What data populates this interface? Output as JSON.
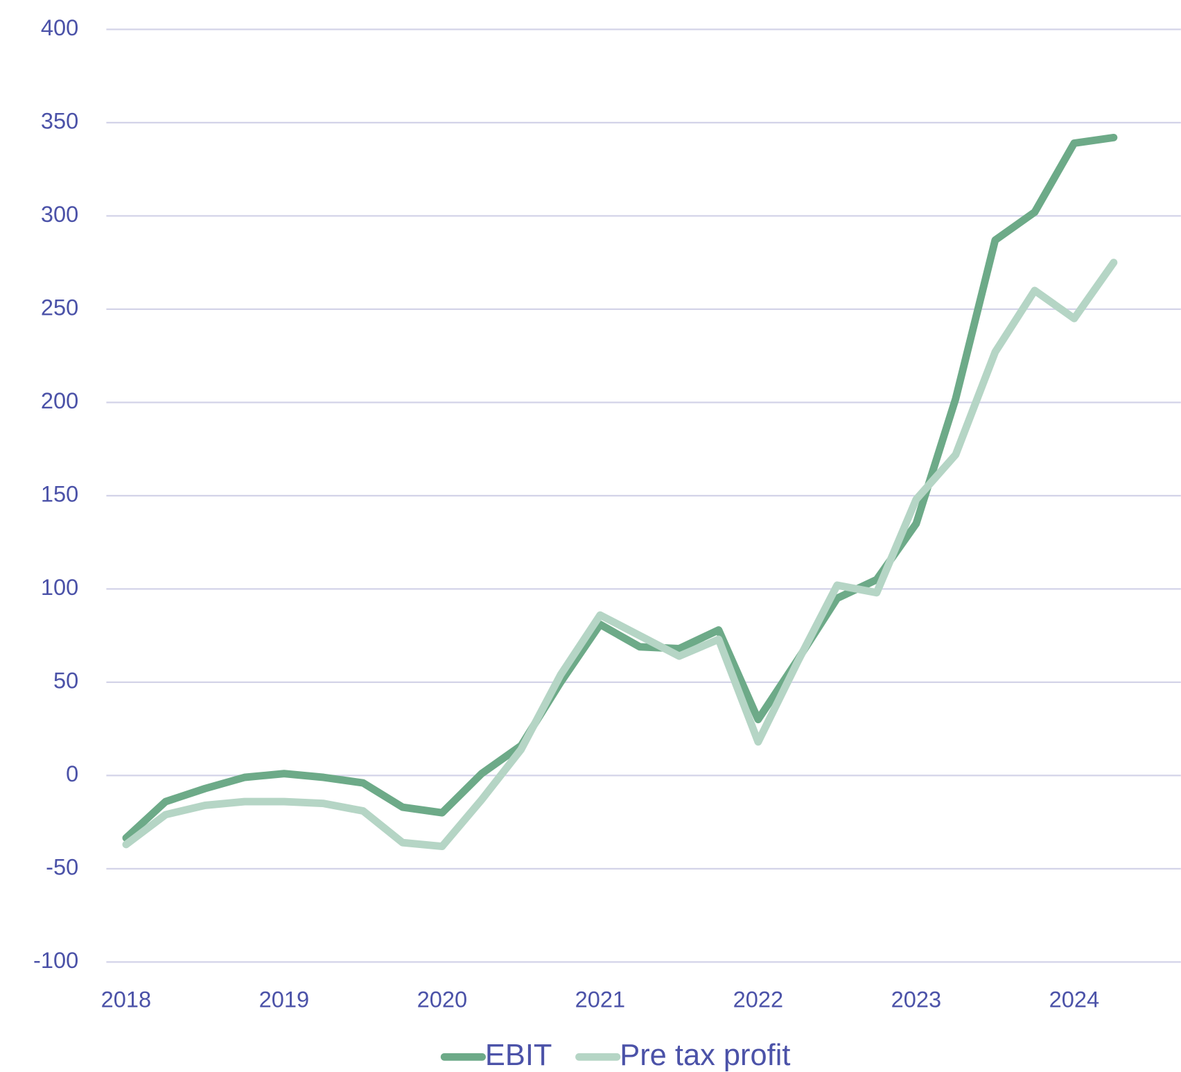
{
  "chart_data": {
    "type": "line",
    "x": [
      2018,
      2018.25,
      2018.5,
      2018.75,
      2019,
      2019.25,
      2019.5,
      2019.75,
      2020,
      2020.25,
      2020.5,
      2020.75,
      2021,
      2021.25,
      2021.5,
      2021.75,
      2022,
      2022.25,
      2022.5,
      2022.75,
      2023,
      2023.25,
      2023.5,
      2023.75,
      2024,
      2024.25
    ],
    "series": [
      {
        "name": "EBIT",
        "color": "#6daa88",
        "values": [
          -33.5,
          -14,
          -7,
          -1,
          1,
          -1,
          -4,
          -17,
          -20,
          1,
          16,
          50,
          81,
          69,
          68,
          78,
          30,
          62,
          95,
          105,
          135,
          202,
          287,
          302,
          339,
          342
        ]
      },
      {
        "name": "Pre tax profit",
        "color": "#b5d5c5",
        "values": [
          -37,
          -21,
          -16,
          -14,
          -14,
          -15,
          -19,
          -36,
          -38,
          -13,
          14,
          54,
          86,
          75,
          64,
          73,
          18,
          61,
          102,
          98,
          148,
          172,
          227,
          260,
          245,
          275
        ]
      }
    ],
    "xlim": [
      2017.875,
      2024.675
    ],
    "xticks": [
      2018,
      2019,
      2020,
      2021,
      2022,
      2023,
      2024
    ],
    "ylim": [
      -100,
      400
    ],
    "yticks": [
      -100,
      -50,
      0,
      50,
      100,
      150,
      200,
      250,
      300,
      350,
      400
    ],
    "grid": true,
    "legend": "bottom"
  }
}
